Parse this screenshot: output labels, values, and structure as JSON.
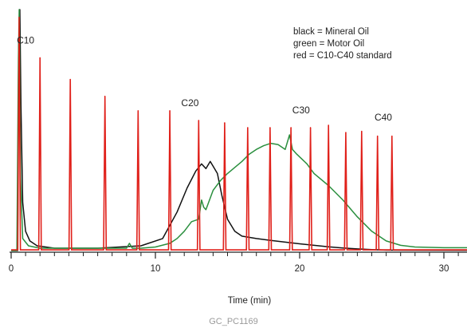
{
  "chart_data": {
    "type": "line",
    "title": "",
    "xlabel": "Time (min)",
    "ylabel": "",
    "xlim": [
      0,
      32
    ],
    "x_ticks": [
      0,
      10,
      20,
      30
    ],
    "x_tick_labels": [
      "0",
      "10",
      "20",
      "30"
    ],
    "ylim": [
      0,
      100
    ],
    "grid": false,
    "legend_position": "top-right",
    "legend": [
      "black = Mineral Oil",
      "green = Motor Oil",
      "red = C10-C40 standard"
    ],
    "series": [
      {
        "name": "Mineral Oil",
        "color": "#111111",
        "x": [
          0,
          0.45,
          0.52,
          0.6,
          0.68,
          0.8,
          1.0,
          1.3,
          1.8,
          3,
          6,
          9,
          10.5,
          11.5,
          12.2,
          12.8,
          13.2,
          13.5,
          13.8,
          14.0,
          14.3,
          14.6,
          15.0,
          15.5,
          16.0,
          17.0,
          18.0,
          19.0,
          20.0,
          21.0,
          22.0,
          23.0,
          24.0,
          25.0,
          26.0,
          32.0
        ],
        "y": [
          0,
          0,
          85,
          100,
          60,
          20,
          8,
          4,
          2,
          1,
          1,
          2,
          5,
          16,
          26,
          33,
          36,
          34,
          37,
          35,
          32,
          23,
          13,
          8,
          6,
          5,
          4.2,
          3.5,
          2.8,
          2.2,
          1.6,
          1.1,
          0.7,
          0.4,
          0.2,
          0.1
        ]
      },
      {
        "name": "Motor Oil",
        "color": "#2a8f3e",
        "x": [
          0,
          0.4,
          0.5,
          0.56,
          0.65,
          0.8,
          1.2,
          2,
          6,
          8,
          8.2,
          8.4,
          9,
          10,
          11,
          11.5,
          12,
          12.5,
          13,
          13.2,
          13.35,
          13.5,
          14,
          14.5,
          15,
          15.5,
          16,
          16.5,
          17,
          17.5,
          18,
          18.5,
          19,
          19.3,
          19.5,
          19.8,
          20.5,
          21,
          22,
          23,
          24,
          25,
          26,
          27,
          28,
          30,
          32
        ],
        "y": [
          0,
          0,
          80,
          100,
          30,
          5,
          2,
          1,
          1,
          1,
          3,
          1,
          1,
          1.5,
          3,
          5,
          8,
          12,
          13,
          21,
          18,
          17,
          25,
          29,
          32,
          34.5,
          37,
          40,
          42,
          43.5,
          44.5,
          44,
          42,
          48,
          42,
          40,
          36,
          32,
          27,
          21,
          14,
          8,
          4,
          2.2,
          1.5,
          1.2,
          1.2
        ]
      }
    ],
    "standard": {
      "name": "C10-C40 standard",
      "color": "#e0201a",
      "solvent_peak": {
        "x": 0.55,
        "y": 97
      },
      "peaks": [
        {
          "x": 2.0,
          "y": 80
        },
        {
          "x": 4.1,
          "y": 71
        },
        {
          "x": 6.5,
          "y": 64
        },
        {
          "x": 8.8,
          "y": 58
        },
        {
          "x": 11.0,
          "y": 58
        },
        {
          "x": 13.0,
          "y": 54
        },
        {
          "x": 14.8,
          "y": 53
        },
        {
          "x": 16.4,
          "y": 51
        },
        {
          "x": 17.95,
          "y": 51
        },
        {
          "x": 19.4,
          "y": 51
        },
        {
          "x": 20.75,
          "y": 51
        },
        {
          "x": 22.0,
          "y": 52
        },
        {
          "x": 23.2,
          "y": 49
        },
        {
          "x": 24.3,
          "y": 49.5
        },
        {
          "x": 25.4,
          "y": 47.5
        },
        {
          "x": 26.4,
          "y": 47.5
        }
      ]
    },
    "annotations": [
      {
        "text": "C10",
        "x": 1.0,
        "y": 86
      },
      {
        "text": "C20",
        "x": 12.4,
        "y": 60
      },
      {
        "text": "C30",
        "x": 20.1,
        "y": 57
      },
      {
        "text": "C40",
        "x": 25.8,
        "y": 54
      }
    ]
  },
  "legend": {
    "mineral": "black = Mineral Oil",
    "motor": "green = Motor Oil",
    "standard": "red = C10-C40 standard"
  },
  "source": "GC_PC1169"
}
